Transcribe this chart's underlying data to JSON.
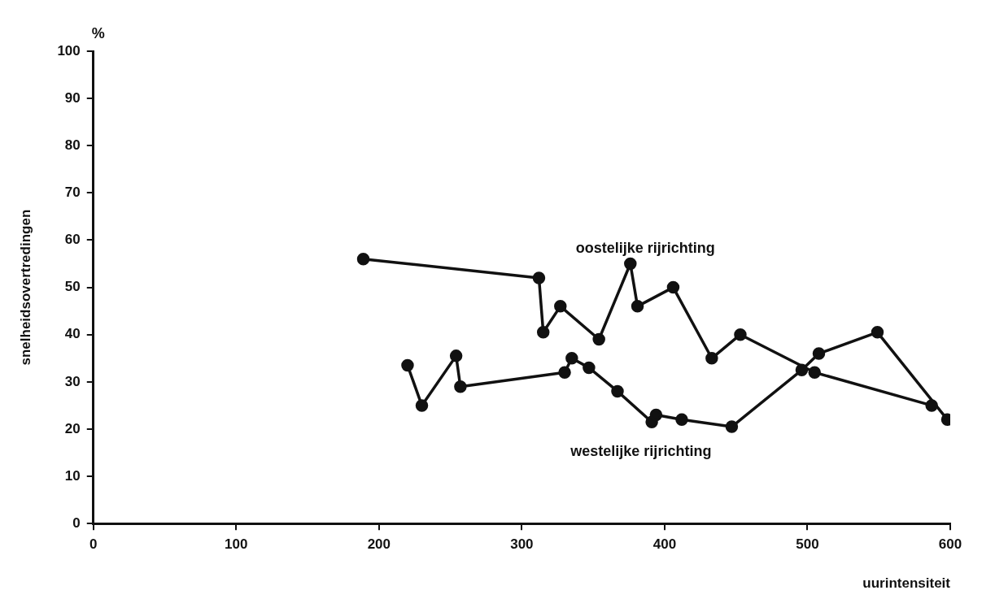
{
  "chart_data": {
    "type": "line",
    "xlabel": "uurintensiteit",
    "ylabel": "snelheidsovertredingen",
    "annotations": [
      "%"
    ],
    "xlim": [
      0,
      600
    ],
    "xticks": [
      0,
      100,
      200,
      300,
      400,
      500,
      600
    ],
    "ylim": [
      0,
      100
    ],
    "yticks": [
      0,
      10,
      20,
      30,
      40,
      50,
      60,
      70,
      80,
      90,
      100
    ],
    "grid": false,
    "legend": false,
    "marker": "circle",
    "line_style": "solid",
    "series": [
      {
        "name": "oostelijke rijrichting",
        "color": "#111111",
        "x": [
          189,
          312,
          315,
          327,
          354,
          376,
          381,
          406,
          433,
          453,
          505,
          587
        ],
        "values": [
          56,
          52,
          40.5,
          46,
          39,
          55,
          46,
          50,
          35,
          40,
          32,
          25
        ]
      },
      {
        "name": "westelijke rijrichting",
        "color": "#111111",
        "x": [
          220,
          230,
          254,
          257,
          330,
          335,
          347,
          367,
          391,
          394,
          412,
          447,
          496,
          508,
          549,
          598
        ],
        "values": [
          33.5,
          25,
          35.5,
          29,
          32,
          35,
          33,
          28,
          21.5,
          23,
          22,
          20.5,
          32.5,
          36,
          40.5,
          22
        ]
      }
    ]
  }
}
